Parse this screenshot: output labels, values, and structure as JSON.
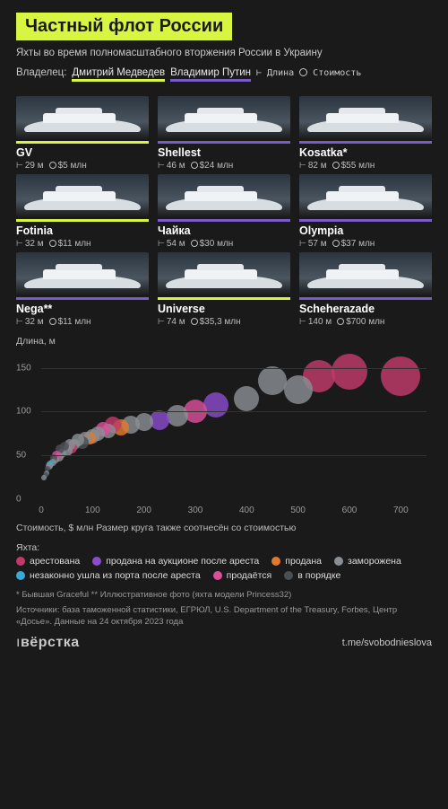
{
  "colors": {
    "bg": "#1a1a1a",
    "accent": "#d8f542",
    "purple": "#7a5cc7",
    "text": "#e8e8e8",
    "muted": "#9a9a9a",
    "grid": "#333333"
  },
  "header": {
    "title": "Частный флот России",
    "subtitle": "Яхты во время полномасштабного вторжения России в Украину",
    "owner_label": "Владелец:",
    "owner_medvedev": "Дмитрий Медведев",
    "owner_putin": "Владимир Путин",
    "length_key": "⊢ Длина",
    "cost_key": "Стоимость"
  },
  "yachts": [
    {
      "name": "GV",
      "length": "29 м",
      "cost": "$5 млн",
      "owner": "med"
    },
    {
      "name": "Shellest",
      "length": "46 м",
      "cost": "$24 млн",
      "owner": "put"
    },
    {
      "name": "Kosatka*",
      "length": "82 м",
      "cost": "$55 млн",
      "owner": "put"
    },
    {
      "name": "Fotinia",
      "length": "32 м",
      "cost": "$11 млн",
      "owner": "med"
    },
    {
      "name": "Чайка",
      "length": "54 м",
      "cost": "$30 млн",
      "owner": "put"
    },
    {
      "name": "Olympia",
      "length": "57 м",
      "cost": "$37 млн",
      "owner": "put"
    },
    {
      "name": "Nega**",
      "length": "32 м",
      "cost": "$11 млн",
      "owner": "put"
    },
    {
      "name": "Universe",
      "length": "74 м",
      "cost": "$35,3 млн",
      "owner": "med"
    },
    {
      "name": "Scheherazade",
      "length": "140 м",
      "cost": "$700 млн",
      "owner": "put"
    }
  ],
  "chart": {
    "type": "scatter",
    "ylabel": "Длина, м",
    "xlabel": "Стоимость, $ млн    Размер круга также соотнесён со стоимостью",
    "xlim": [
      0,
      750
    ],
    "ylim": [
      0,
      170
    ],
    "yticks": [
      0,
      50,
      100,
      150
    ],
    "xticks": [
      0,
      100,
      200,
      300,
      400,
      500,
      600,
      700
    ],
    "status_colors": {
      "arrested": "#c23a6a",
      "frozen": "#8a8f94",
      "ok": "#4a4f54",
      "auction": "#8a4ccc",
      "illegal": "#3aa8d8",
      "sold": "#e07b2e",
      "forsale": "#d94f9a"
    },
    "points": [
      {
        "x": 700,
        "y": 140,
        "r": 22,
        "c": "arrested"
      },
      {
        "x": 600,
        "y": 145,
        "r": 20,
        "c": "arrested"
      },
      {
        "x": 540,
        "y": 140,
        "r": 18,
        "c": "arrested"
      },
      {
        "x": 500,
        "y": 125,
        "r": 16,
        "c": "frozen"
      },
      {
        "x": 450,
        "y": 135,
        "r": 16,
        "c": "frozen"
      },
      {
        "x": 400,
        "y": 115,
        "r": 14,
        "c": "frozen"
      },
      {
        "x": 340,
        "y": 108,
        "r": 14,
        "c": "auction"
      },
      {
        "x": 300,
        "y": 100,
        "r": 13,
        "c": "forsale"
      },
      {
        "x": 265,
        "y": 95,
        "r": 12,
        "c": "frozen"
      },
      {
        "x": 230,
        "y": 90,
        "r": 11,
        "c": "auction"
      },
      {
        "x": 200,
        "y": 88,
        "r": 10,
        "c": "frozen"
      },
      {
        "x": 175,
        "y": 85,
        "r": 10,
        "c": "frozen"
      },
      {
        "x": 155,
        "y": 82,
        "r": 9,
        "c": "sold"
      },
      {
        "x": 140,
        "y": 85,
        "r": 9,
        "c": "arrested"
      },
      {
        "x": 130,
        "y": 78,
        "r": 8,
        "c": "frozen"
      },
      {
        "x": 120,
        "y": 80,
        "r": 8,
        "c": "forsale"
      },
      {
        "x": 110,
        "y": 75,
        "r": 8,
        "c": "frozen"
      },
      {
        "x": 100,
        "y": 72,
        "r": 8,
        "c": "frozen"
      },
      {
        "x": 95,
        "y": 70,
        "r": 7,
        "c": "sold"
      },
      {
        "x": 85,
        "y": 70,
        "r": 7,
        "c": "frozen"
      },
      {
        "x": 80,
        "y": 65,
        "r": 7,
        "c": "ok"
      },
      {
        "x": 72,
        "y": 68,
        "r": 7,
        "c": "frozen"
      },
      {
        "x": 65,
        "y": 62,
        "r": 6,
        "c": "frozen"
      },
      {
        "x": 60,
        "y": 58,
        "r": 6,
        "c": "arrested"
      },
      {
        "x": 55,
        "y": 62,
        "r": 6,
        "c": "frozen"
      },
      {
        "x": 50,
        "y": 55,
        "r": 6,
        "c": "frozen"
      },
      {
        "x": 45,
        "y": 60,
        "r": 5,
        "c": "ok"
      },
      {
        "x": 40,
        "y": 52,
        "r": 5,
        "c": "frozen"
      },
      {
        "x": 37,
        "y": 57,
        "r": 5,
        "c": "ok"
      },
      {
        "x": 35,
        "y": 48,
        "r": 5,
        "c": "frozen"
      },
      {
        "x": 30,
        "y": 50,
        "r": 5,
        "c": "forsale"
      },
      {
        "x": 28,
        "y": 45,
        "r": 4,
        "c": "frozen"
      },
      {
        "x": 25,
        "y": 47,
        "r": 4,
        "c": "ok"
      },
      {
        "x": 22,
        "y": 42,
        "r": 4,
        "c": "frozen"
      },
      {
        "x": 18,
        "y": 40,
        "r": 4,
        "c": "illegal"
      },
      {
        "x": 15,
        "y": 38,
        "r": 4,
        "c": "frozen"
      },
      {
        "x": 12,
        "y": 35,
        "r": 3,
        "c": "ok"
      },
      {
        "x": 10,
        "y": 30,
        "r": 3,
        "c": "frozen"
      },
      {
        "x": 8,
        "y": 28,
        "r": 3,
        "c": "ok"
      },
      {
        "x": 5,
        "y": 25,
        "r": 3,
        "c": "frozen"
      }
    ]
  },
  "legend": {
    "title": "Яхта:",
    "items": [
      {
        "key": "arrested",
        "label": "арестована"
      },
      {
        "key": "auction",
        "label": "продана на аукционе после ареста"
      },
      {
        "key": "sold",
        "label": "продана"
      },
      {
        "key": "frozen",
        "label": "заморожена"
      },
      {
        "key": "illegal",
        "label": "незаконно ушла из порта после ареста"
      },
      {
        "key": "forsale",
        "label": "продаётся"
      },
      {
        "key": "ok",
        "label": "в порядке"
      }
    ]
  },
  "notes": {
    "n1": "* Бывшая Graceful    ** Иллюстративное фото (яхта модели Princess32)",
    "n2": "Источники: база таможенной статистики, ЕГРЮЛ, U.S. Department of the Treasury, Forbes, Центр «Досье». Данные на 24 октября 2023 года"
  },
  "footer": {
    "logo_thin": "ı",
    "logo_bold": "вёрстка",
    "link": "t.me/svobodnieslova"
  }
}
